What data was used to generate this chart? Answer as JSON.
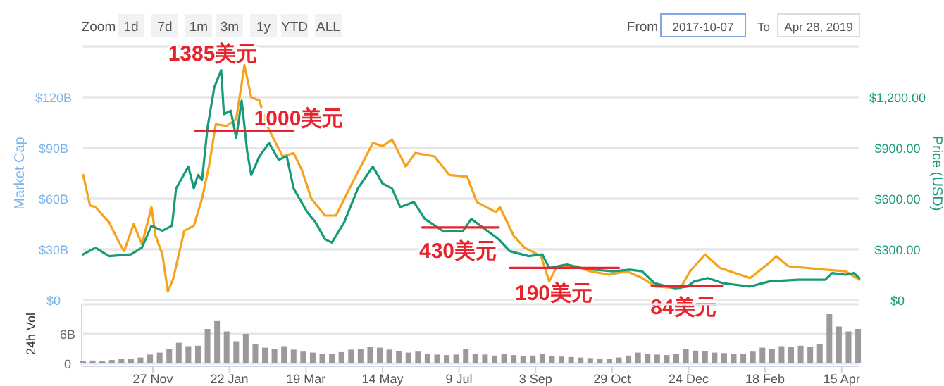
{
  "chart_data": [
    {
      "type": "line",
      "ylabel": "Market Cap",
      "y2label": "Price (USD)",
      "grid": "y",
      "tick_labels": "y",
      "annotations": [
        "Zoom",
        "1d",
        "7d",
        "1m",
        "3m",
        "1y",
        "YTD",
        "ALL",
        "From",
        "2017-10-07",
        "To",
        "Apr 28, 2019",
        "1385美元",
        "1000美元",
        "430美元",
        "190美元",
        "84美元"
      ],
      "xlim": [
        "2017-10-07",
        "2019-04-28"
      ],
      "ylim": [
        0,
        150
      ],
      "yticks": [
        {
          "value": 0,
          "label": "$0"
        },
        {
          "value": 30,
          "label": "$30B"
        },
        {
          "value": 60,
          "label": "$60B"
        },
        {
          "value": 90,
          "label": "$90B"
        },
        {
          "value": 120,
          "label": "$120B"
        },
        {
          "value": 150,
          "label": null
        }
      ],
      "y2lim": [
        0,
        1500
      ],
      "y2ticks": [
        {
          "value": 0,
          "label": "$0"
        },
        {
          "value": 300,
          "label": "$300.00"
        },
        {
          "value": 600,
          "label": "$600.00"
        },
        {
          "value": 900,
          "label": "$900.00"
        },
        {
          "value": 1200,
          "label": "$1,200.00"
        },
        {
          "value": 1500,
          "label": null
        }
      ],
      "series": [
        {
          "color": "#f7a21b",
          "axis": "y2",
          "x": [
            "2017-10-07",
            "2017-10-12",
            "2017-10-16",
            "2017-10-26",
            "2017-11-03",
            "2017-11-06",
            "2017-11-13",
            "2017-11-19",
            "2017-11-26",
            "2017-11-29",
            "2017-12-04",
            "2017-12-08",
            "2017-12-12",
            "2017-12-20",
            "2017-12-27",
            "2018-01-02",
            "2018-01-07",
            "2018-01-12",
            "2018-01-20",
            "2018-01-27",
            "2018-01-31",
            "2018-02-02",
            "2018-02-07",
            "2018-02-13",
            "2018-02-18",
            "2018-02-23",
            "2018-03-02",
            "2018-03-10",
            "2018-03-16",
            "2018-03-23",
            "2018-04-02",
            "2018-04-10",
            "2018-04-23",
            "2018-05-07",
            "2018-05-14",
            "2018-05-21",
            "2018-05-31",
            "2018-06-07",
            "2018-06-21",
            "2018-07-02",
            "2018-07-15",
            "2018-07-22",
            "2018-08-05",
            "2018-08-08",
            "2018-08-18",
            "2018-08-26",
            "2018-09-07",
            "2018-09-13",
            "2018-09-18",
            "2018-10-03",
            "2018-10-13",
            "2018-10-27",
            "2018-11-09",
            "2018-11-20",
            "2018-11-30",
            "2018-12-18",
            "2018-12-25",
            "2019-01-05",
            "2019-01-16",
            "2019-02-07",
            "2019-02-21",
            "2019-02-26",
            "2019-03-07",
            "2019-04-03",
            "2019-04-18",
            "2019-04-28"
          ],
          "values": [
            740,
            560,
            550,
            460,
            330,
            290,
            450,
            330,
            550,
            380,
            270,
            50,
            130,
            410,
            440,
            600,
            790,
            1040,
            1030,
            1070,
            1280,
            1390,
            1200,
            1180,
            1040,
            960,
            850,
            870,
            770,
            600,
            500,
            500,
            710,
            930,
            910,
            950,
            790,
            870,
            850,
            740,
            730,
            580,
            520,
            550,
            380,
            310,
            260,
            110,
            190,
            200,
            170,
            150,
            170,
            130,
            80,
            70,
            170,
            270,
            190,
            130,
            220,
            260,
            200,
            180,
            170,
            120
          ]
        },
        {
          "color": "#169a7a",
          "axis": "y2",
          "x": [
            "2017-10-07",
            "2017-10-16",
            "2017-10-26",
            "2017-11-11",
            "2017-11-19",
            "2017-11-26",
            "2017-12-04",
            "2017-12-11",
            "2017-12-14",
            "2017-12-23",
            "2017-12-27",
            "2017-12-30",
            "2018-01-02",
            "2018-01-06",
            "2018-01-11",
            "2018-01-16",
            "2018-01-18",
            "2018-01-23",
            "2018-01-27",
            "2018-01-31",
            "2018-02-04",
            "2018-02-07",
            "2018-02-13",
            "2018-02-20",
            "2018-02-27",
            "2018-03-05",
            "2018-03-10",
            "2018-03-20",
            "2018-03-26",
            "2018-04-02",
            "2018-04-07",
            "2018-04-16",
            "2018-04-26",
            "2018-05-07",
            "2018-05-14",
            "2018-05-21",
            "2018-05-27",
            "2018-06-06",
            "2018-06-14",
            "2018-06-27",
            "2018-07-12",
            "2018-07-18",
            "2018-07-28",
            "2018-08-07",
            "2018-08-15",
            "2018-08-29",
            "2018-09-08",
            "2018-09-13",
            "2018-09-26",
            "2018-10-06",
            "2018-10-16",
            "2018-10-30",
            "2018-11-11",
            "2018-11-20",
            "2018-11-29",
            "2018-12-14",
            "2018-12-23",
            "2018-12-28",
            "2019-01-07",
            "2019-01-18",
            "2019-02-07",
            "2019-02-21",
            "2019-03-14",
            "2019-04-03",
            "2019-04-08",
            "2019-04-18",
            "2019-04-24",
            "2019-04-28"
          ],
          "values": [
            270,
            310,
            260,
            270,
            310,
            440,
            410,
            440,
            660,
            790,
            660,
            740,
            710,
            1020,
            1260,
            1360,
            1100,
            1120,
            960,
            1180,
            880,
            740,
            850,
            930,
            830,
            850,
            660,
            520,
            460,
            360,
            340,
            460,
            660,
            790,
            690,
            660,
            550,
            580,
            480,
            410,
            410,
            480,
            420,
            360,
            290,
            260,
            270,
            190,
            210,
            190,
            180,
            170,
            180,
            170,
            100,
            70,
            80,
            110,
            130,
            100,
            80,
            110,
            120,
            120,
            160,
            150,
            160,
            130
          ]
        },
        {
          "color": "#e8232b",
          "axis": "y2",
          "x": [
            "2017-12-28",
            "2018-03-10"
          ],
          "values": [
            1000,
            1000
          ]
        },
        {
          "color": "#e8232b",
          "axis": "y2",
          "x": [
            "2018-06-12",
            "2018-08-07"
          ],
          "values": [
            430,
            430
          ]
        },
        {
          "color": "#e8232b",
          "axis": "y2",
          "x": [
            "2018-08-15",
            "2018-11-03"
          ],
          "values": [
            190,
            190
          ]
        },
        {
          "color": "#e8232b",
          "axis": "y2",
          "x": [
            "2018-11-27",
            "2019-01-18"
          ],
          "values": [
            84,
            84
          ]
        }
      ]
    },
    {
      "type": "bar",
      "ylabel": "24h Vol",
      "grid": "y",
      "color": "#9a9a9a",
      "xlim": [
        "2017-10-07",
        "2019-04-28"
      ],
      "xticks": [
        {
          "value": "2017-11-27",
          "label": "27 Nov"
        },
        {
          "value": "2018-01-22",
          "label": "22 Jan"
        },
        {
          "value": "2018-03-19",
          "label": "19 Mar"
        },
        {
          "value": "2018-05-14",
          "label": "14 May"
        },
        {
          "value": "2018-07-09",
          "label": "9 Jul"
        },
        {
          "value": "2018-09-03",
          "label": "3 Sep"
        },
        {
          "value": "2018-10-29",
          "label": "29 Oct"
        },
        {
          "value": "2018-12-24",
          "label": "24 Dec"
        },
        {
          "value": "2019-02-18",
          "label": "18 Feb"
        },
        {
          "value": "2019-04-15",
          "label": "15 Apr"
        }
      ],
      "ylim": [
        0,
        12
      ],
      "yticks": [
        {
          "value": 0,
          "label": "0"
        },
        {
          "value": 6,
          "label": "6B"
        },
        {
          "value": 12,
          "label": null
        }
      ],
      "x": [
        "2017-10-07",
        "2017-10-14",
        "2017-10-21",
        "2017-10-28",
        "2017-11-04",
        "2017-11-11",
        "2017-11-18",
        "2017-11-25",
        "2017-12-02",
        "2017-12-09",
        "2017-12-16",
        "2017-12-23",
        "2017-12-30",
        "2018-01-06",
        "2018-01-13",
        "2018-01-20",
        "2018-01-27",
        "2018-02-03",
        "2018-02-10",
        "2018-02-17",
        "2018-02-24",
        "2018-03-03",
        "2018-03-10",
        "2018-03-17",
        "2018-03-24",
        "2018-03-31",
        "2018-04-07",
        "2018-04-14",
        "2018-04-21",
        "2018-04-28",
        "2018-05-05",
        "2018-05-12",
        "2018-05-19",
        "2018-05-26",
        "2018-06-02",
        "2018-06-09",
        "2018-06-16",
        "2018-06-23",
        "2018-06-30",
        "2018-07-07",
        "2018-07-14",
        "2018-07-21",
        "2018-07-28",
        "2018-08-04",
        "2018-08-11",
        "2018-08-18",
        "2018-08-25",
        "2018-09-01",
        "2018-09-08",
        "2018-09-15",
        "2018-09-22",
        "2018-09-29",
        "2018-10-06",
        "2018-10-13",
        "2018-10-20",
        "2018-10-27",
        "2018-11-03",
        "2018-11-10",
        "2018-11-17",
        "2018-11-24",
        "2018-12-01",
        "2018-12-08",
        "2018-12-15",
        "2018-12-22",
        "2018-12-29",
        "2019-01-05",
        "2019-01-12",
        "2019-01-19",
        "2019-01-26",
        "2019-02-02",
        "2019-02-09",
        "2019-02-16",
        "2019-02-23",
        "2019-03-02",
        "2019-03-09",
        "2019-03-16",
        "2019-03-23",
        "2019-03-30",
        "2019-04-06",
        "2019-04-13",
        "2019-04-20",
        "2019-04-27"
      ],
      "values": [
        0.5,
        0.6,
        0.5,
        0.7,
        0.9,
        1.0,
        1.2,
        1.8,
        2.2,
        3.0,
        4.2,
        3.5,
        3.6,
        7.0,
        8.6,
        6.5,
        4.5,
        6.0,
        4.0,
        3.2,
        3.0,
        3.5,
        2.8,
        2.4,
        2.2,
        2.0,
        2.0,
        2.3,
        2.8,
        3.0,
        3.4,
        3.2,
        2.8,
        2.5,
        2.2,
        2.4,
        2.0,
        1.8,
        1.7,
        1.8,
        3.0,
        2.0,
        1.8,
        1.6,
        2.0,
        1.7,
        1.5,
        1.6,
        2.0,
        1.5,
        1.4,
        1.3,
        1.2,
        1.1,
        1.0,
        1.0,
        1.2,
        1.6,
        2.2,
        2.0,
        1.8,
        1.7,
        2.0,
        3.0,
        2.6,
        2.5,
        2.2,
        2.1,
        2.0,
        2.0,
        2.4,
        3.2,
        3.0,
        3.5,
        3.4,
        3.6,
        3.4,
        4.0,
        10.0,
        7.5,
        6.5,
        7.0
      ]
    }
  ]
}
